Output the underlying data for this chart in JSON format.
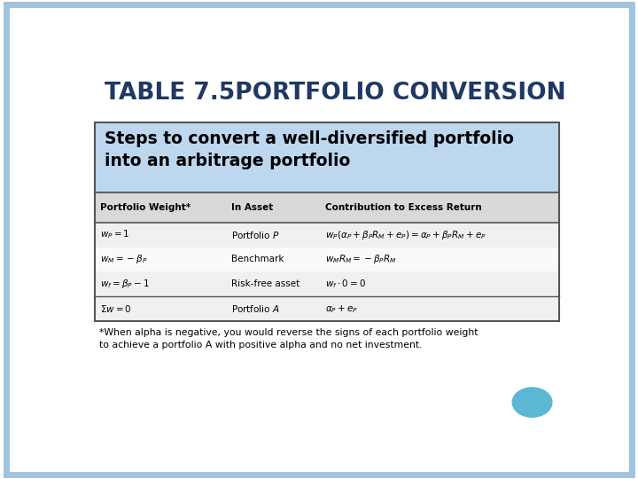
{
  "title": "TABLE 7.5PORTFOLIO CONVERSION",
  "title_color": "#1F3864",
  "subtitle": "Steps to convert a well-diversified portfolio\ninto an arbitrage portfolio",
  "subtitle_bg": "#BDD7EE",
  "subtitle_color": "#000000",
  "bg_color": "#FFFFFF",
  "outer_border_color": "#A0C4E0",
  "table_border_color": "#555555",
  "col_headers": [
    "Portfolio Weight*",
    "In Asset",
    "Contribution to Excess Return"
  ],
  "col_header_bg": "#D9D9D9",
  "rows": [
    [
      "$w_P = 1$",
      "Portfolio $P$",
      "$w_P(\\alpha_P + \\beta_P R_M + e_P) = \\alpha_P + \\beta_P R_M + e_P$"
    ],
    [
      "$w_M = -\\beta_P$",
      "Benchmark",
      "$w_M R_M = -\\beta_P R_M$"
    ],
    [
      "$w_f = \\beta_P - 1$",
      "Risk-free asset",
      "$w_f \\cdot 0 = 0$"
    ]
  ],
  "sum_row": [
    "$\\Sigma w = 0$",
    "Portfolio $A$",
    "$\\alpha_P + e_P$"
  ],
  "footnote": "*When alpha is negative, you would reverse the signs of each portfolio weight\nto achieve a portfolio A with positive alpha and no net investment.",
  "circle_color": "#5BB8D4",
  "table_bg": "#F0F0F0",
  "row_alt_bg": "#FAFAFA"
}
